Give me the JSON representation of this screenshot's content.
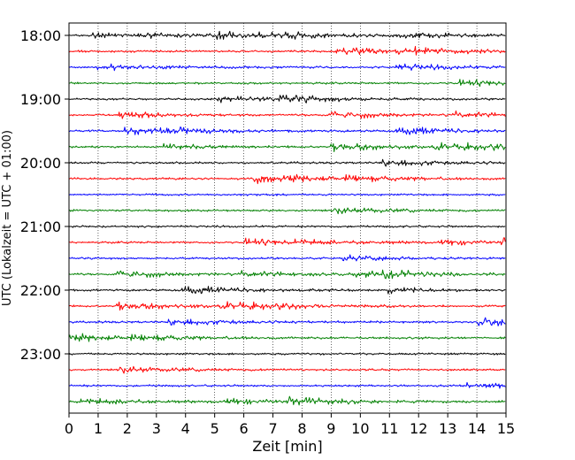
{
  "chart_data": {
    "type": "line",
    "subtype": "helicorder",
    "title": "",
    "xlabel": "Zeit  [min]",
    "ylabel": "UTC (Lokalzeit = UTC + 01:00)",
    "xlim": [
      0,
      15
    ],
    "x_ticks": [
      "0",
      "1",
      "2",
      "3",
      "4",
      "5",
      "6",
      "7",
      "8",
      "9",
      "10",
      "11",
      "12",
      "13",
      "14",
      "15"
    ],
    "y_tick_labels": [
      "18:00",
      "19:00",
      "20:00",
      "21:00",
      "22:00",
      "23:00"
    ],
    "trace_interval_min": 15,
    "start_time": "18:00",
    "end_time": "24:00",
    "trace_count": 24,
    "color_cycle": [
      "#000000",
      "#ff0000",
      "#0000ff",
      "#008000"
    ],
    "grid": "vertical dotted lines at each minute",
    "legend": "none"
  }
}
